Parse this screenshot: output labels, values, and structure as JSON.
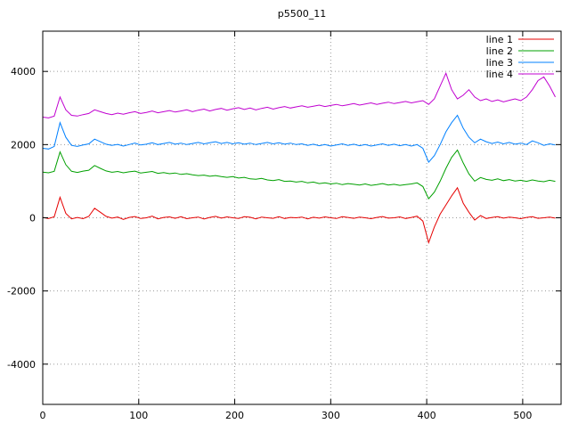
{
  "page": {
    "background": "#ffffff"
  },
  "chart_data": {
    "type": "line",
    "title": "p5500_11",
    "xlabel": "",
    "ylabel": "",
    "xlim": [
      0,
      540
    ],
    "ylim": [
      -5100,
      5100
    ],
    "xticks": [
      0,
      100,
      200,
      300,
      400,
      500
    ],
    "yticks": [
      -4000,
      -2000,
      0,
      2000,
      4000
    ],
    "grid": true,
    "grid_color": "#9a9a9a",
    "axis_color": "#000000",
    "legend_position": "top-right",
    "x_start": 0,
    "x_step": 6,
    "series": [
      {
        "name": "line 1",
        "color": "#e60000",
        "values": [
          10,
          -20,
          30,
          560,
          120,
          -30,
          10,
          -25,
          40,
          260,
          150,
          40,
          -10,
          20,
          -45,
          10,
          35,
          -20,
          0,
          45,
          -30,
          10,
          25,
          -15,
          30,
          -25,
          0,
          20,
          -35,
          10,
          40,
          -10,
          25,
          0,
          -20,
          30,
          15,
          -30,
          20,
          0,
          -15,
          30,
          -20,
          10,
          0,
          20,
          -30,
          15,
          -10,
          25,
          0,
          -20,
          30,
          10,
          -15,
          20,
          0,
          -25,
          10,
          35,
          -10,
          0,
          25,
          -20,
          10,
          45,
          -90,
          -680,
          -250,
          100,
          350,
          600,
          820,
          400,
          150,
          -60,
          60,
          -20,
          10,
          30,
          -10,
          20,
          0,
          -25,
          10,
          30,
          -15,
          0,
          20,
          -10
        ]
      },
      {
        "name": "line 2",
        "color": "#00a000",
        "values": [
          1250,
          1230,
          1270,
          1800,
          1450,
          1270,
          1240,
          1275,
          1300,
          1430,
          1350,
          1280,
          1245,
          1265,
          1230,
          1255,
          1275,
          1225,
          1245,
          1265,
          1215,
          1235,
          1205,
          1225,
          1185,
          1205,
          1175,
          1155,
          1165,
          1135,
          1155,
          1125,
          1105,
          1125,
          1085,
          1105,
          1065,
          1055,
          1075,
          1035,
          1015,
          1045,
          995,
          1005,
          975,
          995,
          955,
          975,
          935,
          955,
          925,
          945,
          905,
          935,
          915,
          895,
          925,
          885,
          905,
          935,
          895,
          915,
          885,
          905,
          925,
          955,
          855,
          520,
          700,
          1000,
          1350,
          1650,
          1850,
          1500,
          1200,
          1000,
          1100,
          1050,
          1025,
          1065,
          1015,
          1045,
          1005,
          1025,
          995,
          1035,
          1005,
          985,
          1025,
          995
        ]
      },
      {
        "name": "line 3",
        "color": "#0080ff",
        "values": [
          1900,
          1880,
          1950,
          2600,
          2200,
          1980,
          1950,
          1990,
          2020,
          2150,
          2080,
          2010,
          1980,
          2005,
          1960,
          2000,
          2040,
          1990,
          2010,
          2050,
          2000,
          2030,
          2060,
          2010,
          2040,
          2000,
          2030,
          2060,
          2020,
          2050,
          2080,
          2030,
          2060,
          2020,
          2050,
          2010,
          2040,
          2000,
          2030,
          2060,
          2020,
          2050,
          2010,
          2040,
          2000,
          2020,
          1980,
          2010,
          1970,
          2000,
          1960,
          1990,
          2020,
          1980,
          2010,
          1970,
          2000,
          1960,
          1990,
          2020,
          1980,
          2010,
          1970,
          2000,
          1960,
          2000,
          1900,
          1520,
          1700,
          2000,
          2350,
          2600,
          2800,
          2450,
          2200,
          2050,
          2150,
          2080,
          2030,
          2070,
          2020,
          2060,
          2010,
          2040,
          2000,
          2100,
          2050,
          1980,
          2020,
          1990
        ]
      },
      {
        "name": "line 4",
        "color": "#c000d0",
        "values": [
          2750,
          2730,
          2780,
          3300,
          2950,
          2800,
          2780,
          2820,
          2850,
          2950,
          2900,
          2850,
          2820,
          2860,
          2830,
          2870,
          2900,
          2850,
          2880,
          2920,
          2870,
          2900,
          2930,
          2890,
          2920,
          2950,
          2900,
          2940,
          2970,
          2920,
          2960,
          2990,
          2940,
          2980,
          3010,
          2960,
          3000,
          2950,
          2990,
          3020,
          2970,
          3010,
          3040,
          3000,
          3030,
          3060,
          3020,
          3050,
          3080,
          3040,
          3070,
          3100,
          3060,
          3090,
          3120,
          3080,
          3110,
          3140,
          3100,
          3130,
          3160,
          3120,
          3150,
          3180,
          3140,
          3170,
          3200,
          3100,
          3250,
          3600,
          3950,
          3500,
          3250,
          3350,
          3500,
          3300,
          3200,
          3250,
          3180,
          3220,
          3170,
          3210,
          3250,
          3200,
          3300,
          3500,
          3750,
          3850,
          3600,
          3300
        ]
      }
    ]
  }
}
